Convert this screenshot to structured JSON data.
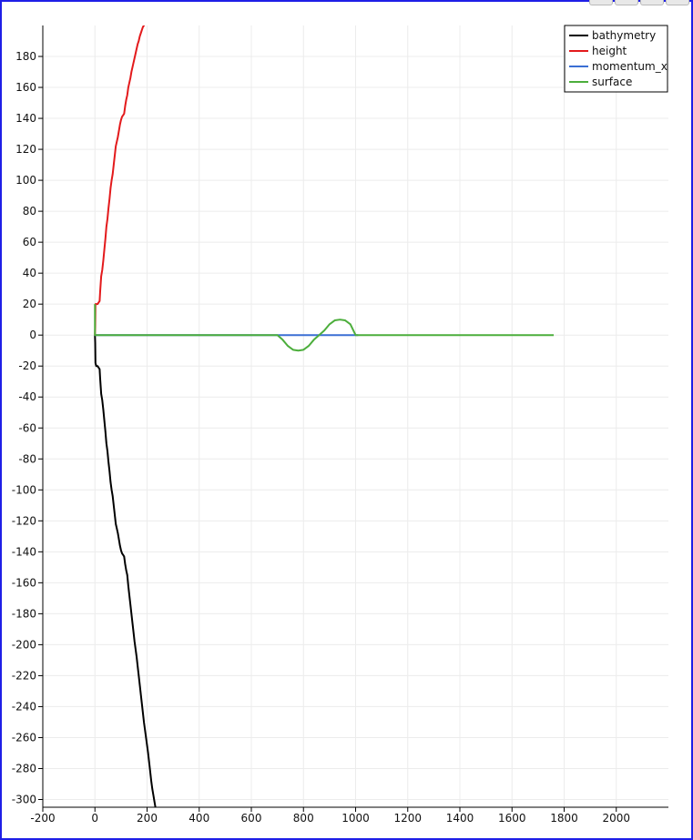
{
  "chart_data": {
    "type": "line",
    "title": "",
    "xlabel": "",
    "ylabel": "",
    "xlim": [
      -200,
      2200
    ],
    "ylim": [
      -305,
      200
    ],
    "xticks": [
      -200,
      0,
      200,
      400,
      600,
      800,
      1000,
      1200,
      1400,
      1600,
      1800,
      2000
    ],
    "yticks": [
      180,
      160,
      140,
      120,
      100,
      80,
      60,
      40,
      20,
      0,
      -20,
      -40,
      -60,
      -80,
      -100,
      -120,
      -140,
      -160,
      -180,
      -200,
      -220,
      -240,
      -260,
      -280,
      -300
    ],
    "grid": true,
    "legend": "top-right",
    "series": [
      {
        "name": "bathymetry",
        "color": "#000000",
        "x": [
          0,
          1,
          2,
          5,
          10,
          14,
          18,
          20,
          24,
          28,
          32,
          36,
          40,
          44,
          48,
          52,
          56,
          60,
          64,
          68,
          72,
          76,
          80,
          84,
          88,
          92,
          96,
          100,
          104,
          108,
          112,
          116,
          120,
          124,
          128,
          132,
          136,
          140,
          144,
          148,
          152,
          156,
          160,
          164,
          168,
          172,
          176,
          180,
          184,
          188,
          192,
          196,
          200,
          204,
          208,
          212,
          216,
          220,
          224,
          228,
          232
        ],
        "y": [
          0,
          -5,
          -18,
          -20,
          -20,
          -21,
          -22,
          -28,
          -38,
          -42,
          -48,
          -55,
          -62,
          -70,
          -75,
          -82,
          -88,
          -95,
          -100,
          -104,
          -110,
          -116,
          -122,
          -125,
          -128,
          -132,
          -136,
          -139,
          -141,
          -142,
          -143,
          -148,
          -152,
          -155,
          -162,
          -168,
          -174,
          -180,
          -186,
          -192,
          -198,
          -203,
          -208,
          -214,
          -220,
          -226,
          -232,
          -238,
          -244,
          -250,
          -255,
          -260,
          -265,
          -270,
          -276,
          -282,
          -288,
          -293,
          -297,
          -301,
          -305
        ]
      },
      {
        "name": "height",
        "color": "#e31a1c",
        "x": [
          0,
          1,
          2,
          6,
          10,
          14,
          18,
          20,
          24,
          28,
          32,
          36,
          40,
          44,
          48,
          52,
          56,
          60,
          64,
          68,
          72,
          76,
          80,
          84,
          88,
          92,
          96,
          100,
          104,
          108,
          112,
          116,
          120,
          124,
          128,
          132,
          136,
          140,
          144,
          148,
          152,
          156,
          160,
          164,
          168,
          172,
          176,
          180,
          184,
          188,
          190
        ],
        "y": [
          0,
          5,
          20,
          20,
          20,
          21,
          22,
          28,
          38,
          42,
          48,
          55,
          62,
          70,
          75,
          82,
          88,
          95,
          100,
          104,
          110,
          116,
          122,
          125,
          128,
          132,
          136,
          139,
          141,
          142,
          143,
          148,
          152,
          155,
          160,
          163,
          166,
          170,
          173,
          176,
          179,
          182,
          185,
          188,
          190,
          193,
          195,
          197,
          199,
          200,
          201
        ]
      },
      {
        "name": "momentum_x",
        "color": "#3b6fd4",
        "x": [
          0,
          690,
          700,
          800,
          900,
          1000,
          1010
        ],
        "y": [
          0,
          0,
          0,
          0,
          0,
          0,
          0
        ]
      },
      {
        "name": "surface",
        "color": "#4cae3c",
        "x": [
          0,
          0,
          0,
          700,
          720,
          740,
          760,
          780,
          800,
          820,
          840,
          860,
          880,
          900,
          920,
          940,
          960,
          980,
          1000,
          1760
        ],
        "y": [
          20,
          0,
          0,
          0,
          -3,
          -7,
          -9.5,
          -10,
          -9.5,
          -7,
          -3,
          0,
          3,
          7,
          9.5,
          10,
          9.5,
          7,
          0,
          0
        ]
      }
    ]
  }
}
